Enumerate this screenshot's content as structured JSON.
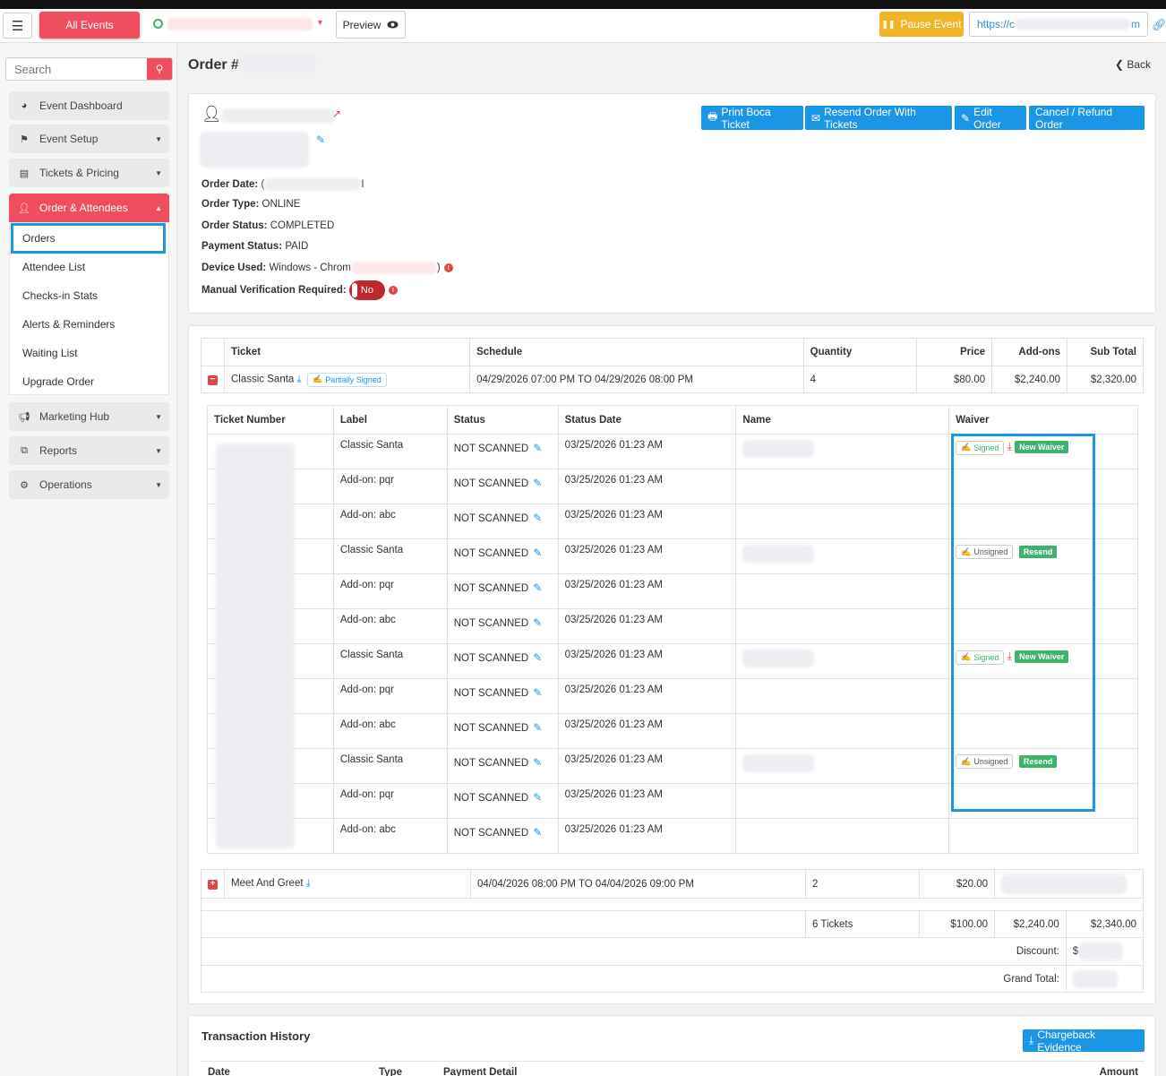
{
  "topbar": {
    "all_events_label": "All Events",
    "preview_label": "Preview",
    "pause_label": "Pause Event",
    "url_start": "https://c",
    "url_end": "m"
  },
  "sidebar": {
    "search_placeholder": "Search",
    "items": [
      {
        "label": "Event Dashboard",
        "icon": "dashboard-icon"
      },
      {
        "label": "Event Setup",
        "icon": "flag-icon"
      },
      {
        "label": "Tickets & Pricing",
        "icon": "ticket-icon"
      },
      {
        "label": "Order & Attendees",
        "icon": "user-icon"
      },
      {
        "label": "Marketing Hub",
        "icon": "megaphone-icon"
      },
      {
        "label": "Reports",
        "icon": "reports-icon"
      },
      {
        "label": "Operations",
        "icon": "operations-icon"
      }
    ],
    "sub_items": [
      "Orders",
      "Attendee List",
      "Checks-in Stats",
      "Alerts & Reminders",
      "Waiting List",
      "Upgrade Order"
    ]
  },
  "header": {
    "title": "Order #",
    "back_label": "Back"
  },
  "order": {
    "buttons": [
      "Print Boca Ticket",
      "Resend Order With Tickets",
      "Edit Order",
      "Cancel / Refund Order"
    ],
    "order_date_label": "Order Date:",
    "order_date_start": "(",
    "order_date_end": "I",
    "order_type_label": "Order Type:",
    "order_type": "ONLINE",
    "order_status_label": "Order Status:",
    "order_status": "COMPLETED",
    "payment_status_label": "Payment Status:",
    "payment_status": "PAID",
    "device_label": "Device Used:",
    "device_start": "Windows - Chrom",
    "device_end": ")",
    "manual_label": "Manual Verification Required:",
    "manual_value": "No"
  },
  "tickets_table": {
    "headers": [
      "Ticket",
      "Schedule",
      "Quantity",
      "Price",
      "Add-ons",
      "Sub Total"
    ],
    "rows": [
      {
        "ticket": "Classic Santa",
        "badge": "Partially Signed",
        "schedule": "04/29/2026 07:00 PM TO 04/29/2026 08:00 PM",
        "quantity": "4",
        "price": "$80.00",
        "addons": "$2,240.00",
        "subtotal": "$2,320.00"
      },
      {
        "ticket": "Meet And Greet",
        "schedule": "04/04/2026 08:00 PM TO 04/04/2026 09:00 PM",
        "quantity": "2",
        "price": "$20.00"
      }
    ],
    "totals": {
      "tickets": "6 Tickets",
      "price": "$100.00",
      "addons": "$2,240.00",
      "subtotal": "$2,340.00",
      "discount_label": "Discount:",
      "discount_start": "$",
      "grand_total_label": "Grand Total:"
    }
  },
  "inner_table": {
    "headers": [
      "Ticket Number",
      "Label",
      "Status",
      "Status Date",
      "Name",
      "Waiver"
    ],
    "rows": [
      {
        "label": "Classic Santa",
        "status": "NOT SCANNED",
        "date": "03/25/2026 01:23 AM",
        "waiver": "signed"
      },
      {
        "label": "Add-on: pqr",
        "status": "NOT SCANNED",
        "date": "03/25/2026 01:23 AM",
        "waiver": ""
      },
      {
        "label": "Add-on: abc",
        "status": "NOT SCANNED",
        "date": "03/25/2026 01:23 AM",
        "waiver": ""
      },
      {
        "label": "Classic Santa",
        "status": "NOT SCANNED",
        "date": "03/25/2026 01:23 AM",
        "waiver": "unsigned"
      },
      {
        "label": "Add-on: pqr",
        "status": "NOT SCANNED",
        "date": "03/25/2026 01:23 AM",
        "waiver": ""
      },
      {
        "label": "Add-on: abc",
        "status": "NOT SCANNED",
        "date": "03/25/2026 01:23 AM",
        "waiver": ""
      },
      {
        "label": "Classic Santa",
        "status": "NOT SCANNED",
        "date": "03/25/2026 01:23 AM",
        "waiver": "signed"
      },
      {
        "label": "Add-on: pqr",
        "status": "NOT SCANNED",
        "date": "03/25/2026 01:23 AM",
        "waiver": ""
      },
      {
        "label": "Add-on: abc",
        "status": "NOT SCANNED",
        "date": "03/25/2026 01:23 AM",
        "waiver": ""
      },
      {
        "label": "Classic Santa",
        "status": "NOT SCANNED",
        "date": "03/25/2026 01:23 AM",
        "waiver": "unsigned"
      },
      {
        "label": "Add-on: pqr",
        "status": "NOT SCANNED",
        "date": "03/25/2026 01:23 AM",
        "waiver": ""
      },
      {
        "label": "Add-on: abc",
        "status": "NOT SCANNED",
        "date": "03/25/2026 01:23 AM",
        "waiver": ""
      }
    ],
    "waiver_labels": {
      "signed": "Signed",
      "unsigned": "Unsigned",
      "new_waiver": "New Waiver",
      "resend": "Resend"
    }
  },
  "transactions": {
    "title": "Transaction History",
    "evidence_button": "Chargeback Evidence",
    "headers": [
      "Date",
      "Type",
      "Payment Detail",
      "Amount"
    ]
  },
  "colors": {
    "accent_red": "#f04e5e",
    "accent_blue": "#1b95e6",
    "green": "#3db36b",
    "pause_yellow": "#f0b428"
  }
}
